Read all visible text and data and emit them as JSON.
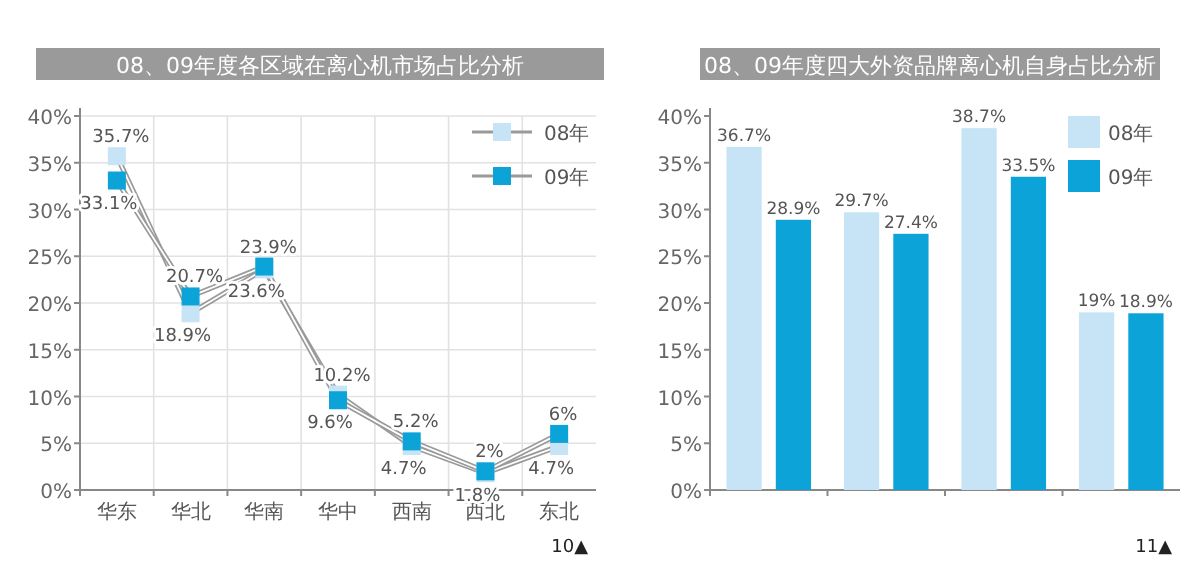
{
  "chart_data": [
    {
      "type": "line",
      "title": "08、09年度各区域在离心机市场占比分析",
      "categories": [
        "华东",
        "华北",
        "华南",
        "华中",
        "西南",
        "西北",
        "东北"
      ],
      "series": [
        {
          "name": "08年",
          "color": "#c6e4f6",
          "values": [
            35.7,
            18.9,
            23.6,
            10.2,
            4.7,
            1.8,
            4.7
          ],
          "value_labels": [
            "35.7%",
            "18.9%",
            "23.6%",
            "10.2%",
            "4.7%",
            "1.8%",
            "4.7%"
          ]
        },
        {
          "name": "09年",
          "color": "#0ba3d8",
          "values": [
            33.1,
            20.7,
            23.9,
            9.6,
            5.2,
            2,
            6
          ],
          "value_labels": [
            "33.1%",
            "20.7%",
            "23.9%",
            "9.6%",
            "5.2%",
            "2%",
            "6%"
          ]
        }
      ],
      "ylim": [
        0,
        40
      ],
      "yticks": [
        {
          "value": 0,
          "label": "0%"
        },
        {
          "value": 5,
          "label": "5%"
        },
        {
          "value": 10,
          "label": "10%"
        },
        {
          "value": 15,
          "label": "15%"
        },
        {
          "value": 20,
          "label": "20%"
        },
        {
          "value": 25,
          "label": "25%"
        },
        {
          "value": 30,
          "label": "30%"
        },
        {
          "value": 35,
          "label": "35%"
        },
        {
          "value": 40,
          "label": "40%"
        }
      ],
      "grid": true,
      "legend": "top right",
      "marker": "square",
      "line_style": "solid",
      "annotations": [
        "10▲"
      ]
    },
    {
      "type": "bar",
      "title": "08、09年度四大外资品牌离心机自身占比分析",
      "categories": [
        null,
        null,
        null,
        null
      ],
      "series": [
        {
          "name": "08年",
          "color": "#c6e4f6",
          "values": [
            36.7,
            29.7,
            38.7,
            19
          ],
          "value_labels": [
            "36.7%",
            "29.7%",
            "38.7%",
            "19%"
          ]
        },
        {
          "name": "09年",
          "color": "#0ba3d8",
          "values": [
            28.9,
            27.4,
            33.5,
            18.9
          ],
          "value_labels": [
            "28.9%",
            "27.4%",
            "33.5%",
            "18.9%"
          ]
        }
      ],
      "ylim": [
        0,
        40
      ],
      "yticks": [
        {
          "value": 0,
          "label": "0%"
        },
        {
          "value": 5,
          "label": "5%"
        },
        {
          "value": 10,
          "label": "10%"
        },
        {
          "value": 15,
          "label": "15%"
        },
        {
          "value": 20,
          "label": "20%"
        },
        {
          "value": 25,
          "label": "25%"
        },
        {
          "value": 30,
          "label": "30%"
        },
        {
          "value": 35,
          "label": "35%"
        },
        {
          "value": 40,
          "label": "40%"
        }
      ],
      "grid": false,
      "legend": "top right",
      "annotations": [
        "11▲"
      ]
    }
  ]
}
